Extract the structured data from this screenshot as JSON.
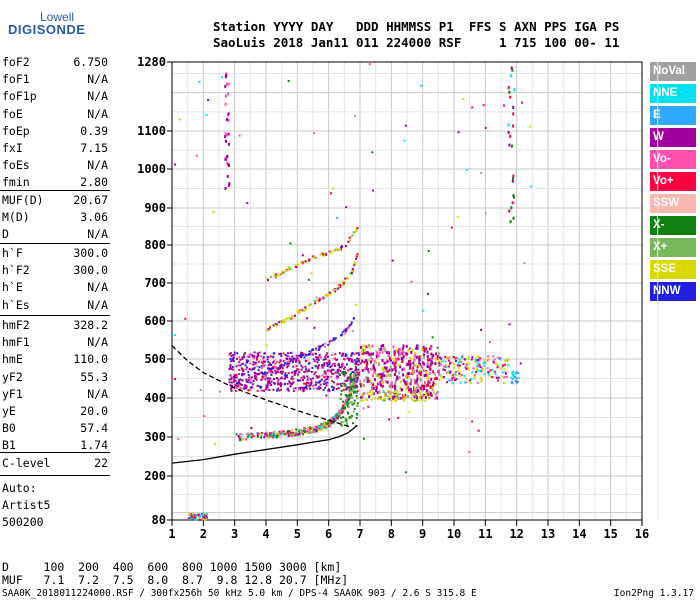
{
  "logo": {
    "top": "Lowell",
    "main": "DIGISONDE"
  },
  "header": {
    "line1": "Station YYYY DAY   DDD HHMMSS P1  FFS S AXN PPS IGA PS",
    "line2": "SaoLuis 2018 Jan11 011 224000 RSF     1 715 100 00- 11"
  },
  "params_group1": [
    {
      "name": "foF2",
      "value": "6.750"
    },
    {
      "name": "foF1",
      "value": "N/A"
    },
    {
      "name": "foF1p",
      "value": "N/A"
    },
    {
      "name": "foE",
      "value": "N/A"
    },
    {
      "name": "foEp",
      "value": "0.39"
    },
    {
      "name": "fxI",
      "value": "7.15"
    },
    {
      "name": "foEs",
      "value": "N/A"
    },
    {
      "name": "fmin",
      "value": "2.80"
    }
  ],
  "params_group2": [
    {
      "name": "MUF(D)",
      "value": "20.67"
    },
    {
      "name": "M(D)",
      "value": "3.06"
    },
    {
      "name": "D",
      "value": "N/A"
    }
  ],
  "params_group3": [
    {
      "name": "h`F",
      "value": "300.0"
    },
    {
      "name": "h`F2",
      "value": "300.0"
    },
    {
      "name": "h`E",
      "value": "N/A"
    },
    {
      "name": "h`Es",
      "value": "N/A"
    }
  ],
  "params_group4": [
    {
      "name": "hmF2",
      "value": "328.2"
    },
    {
      "name": "hmF1",
      "value": "N/A"
    },
    {
      "name": "hmE",
      "value": "110.0"
    },
    {
      "name": "yF2",
      "value": "55.3"
    },
    {
      "name": "yF1",
      "value": "N/A"
    },
    {
      "name": "yE",
      "value": "20.0"
    },
    {
      "name": "B0",
      "value": "57.4"
    },
    {
      "name": "B1",
      "value": "1.74"
    }
  ],
  "params_group5": [
    {
      "name": "C-level",
      "value": "22"
    }
  ],
  "auto": [
    "Auto:",
    "Artist5",
    "500200"
  ],
  "legend": [
    {
      "label": "NoVal",
      "color": "#a0a0a0"
    },
    {
      "label": "NNE",
      "color": "#00e0f0"
    },
    {
      "label": "E",
      "color": "#30a8ff"
    },
    {
      "label": "W",
      "color": "#a000a0"
    },
    {
      "label": "Vo-",
      "color": "#ff50b0"
    },
    {
      "label": "Vo+",
      "color": "#ff0040"
    },
    {
      "label": "SSW",
      "color": "#f8b8b0"
    },
    {
      "label": "X-",
      "color": "#108010"
    },
    {
      "label": "X+",
      "color": "#78b858"
    },
    {
      "label": "SSE",
      "color": "#d8d800"
    },
    {
      "label": "NNW",
      "color": "#2020e0"
    }
  ],
  "freq_table": {
    "line1": "D     100  200  400  600  800 1000 1500 3000 [km]",
    "line2": "MUF   7.1  7.2  7.5  8.0  8.7  9.8 12.8 20.7 [MHz]"
  },
  "footer": {
    "left": "SAA0K_2018011224000.RSF / 300fx256h 50 kHz 5.0 km / DPS-4 SAA0K 903 / 2.6 S 315.8 E",
    "right": "Ion2Png 1.3.17"
  },
  "chart_data": {
    "type": "scatter",
    "xlabel": "",
    "ylabel": "",
    "xlim": [
      1,
      16
    ],
    "ylim": [
      80,
      1280
    ],
    "y_axis_scale": "nonlinear (ionogram virtual height)",
    "x_ticks": [
      "1",
      "2",
      "3",
      "4",
      "5",
      "6",
      "7",
      "8",
      "9",
      "10",
      "11",
      "12",
      "13",
      "14",
      "15",
      "16"
    ],
    "y_ticks": [
      "80",
      "200",
      "300",
      "400",
      "500",
      "600",
      "700",
      "800",
      "900",
      "1000",
      "1100",
      "1280"
    ],
    "grid": true,
    "series": [
      {
        "type": "line",
        "style": "solid",
        "points": [
          [
            1,
            233
          ],
          [
            2,
            242
          ],
          [
            3,
            256
          ],
          [
            4,
            268
          ],
          [
            5,
            280
          ],
          [
            5.5,
            287
          ],
          [
            6,
            293
          ],
          [
            6.3,
            300
          ],
          [
            6.6,
            310
          ],
          [
            6.8,
            322
          ],
          [
            6.9,
            330
          ]
        ]
      },
      {
        "type": "line",
        "style": "dashed",
        "points": [
          [
            1,
            535
          ],
          [
            1.5,
            495
          ],
          [
            2,
            465
          ],
          [
            3,
            425
          ],
          [
            4,
            395
          ],
          [
            5,
            368
          ],
          [
            5.5,
            355
          ],
          [
            6,
            343
          ],
          [
            6.4,
            333
          ],
          [
            6.7,
            326
          ]
        ]
      },
      {
        "type": "trace",
        "layer": "F trace",
        "points": [
          [
            3,
            302
          ],
          [
            4,
            307
          ],
          [
            4.5,
            310
          ],
          [
            5,
            315
          ],
          [
            5.5,
            322
          ],
          [
            5.8,
            330
          ],
          [
            6,
            338
          ],
          [
            6.2,
            352
          ],
          [
            6.4,
            372
          ],
          [
            6.6,
            400
          ],
          [
            6.75,
            440
          ],
          [
            6.85,
            480
          ]
        ]
      },
      {
        "type": "trace",
        "layer": "2F multiple",
        "points": [
          [
            3,
            440
          ],
          [
            4,
            470
          ],
          [
            4.5,
            485
          ],
          [
            5,
            505
          ],
          [
            5.5,
            525
          ],
          [
            6,
            545
          ],
          [
            6.5,
            575
          ],
          [
            6.8,
            610
          ]
        ]
      },
      {
        "type": "trace",
        "layer": "upper multiple",
        "points": [
          [
            4,
            580
          ],
          [
            4.5,
            600
          ],
          [
            5,
            625
          ],
          [
            5.5,
            650
          ],
          [
            6,
            675
          ],
          [
            6.4,
            700
          ],
          [
            6.7,
            730
          ],
          [
            6.9,
            780
          ]
        ]
      },
      {
        "type": "trace",
        "layer": "oblique",
        "points": [
          [
            4,
            710
          ],
          [
            4.5,
            730
          ],
          [
            5,
            750
          ],
          [
            5.5,
            770
          ],
          [
            6,
            785
          ],
          [
            6.5,
            800
          ],
          [
            6.9,
            850
          ]
        ]
      },
      {
        "type": "cluster",
        "layer": "spread F",
        "x_range": [
          2.8,
          11.7
        ],
        "y_range": [
          420,
          520
        ]
      },
      {
        "type": "cluster",
        "layer": "low echoes",
        "x_range": [
          1.5,
          2.1
        ],
        "y_range": [
          80,
          100
        ]
      }
    ]
  }
}
